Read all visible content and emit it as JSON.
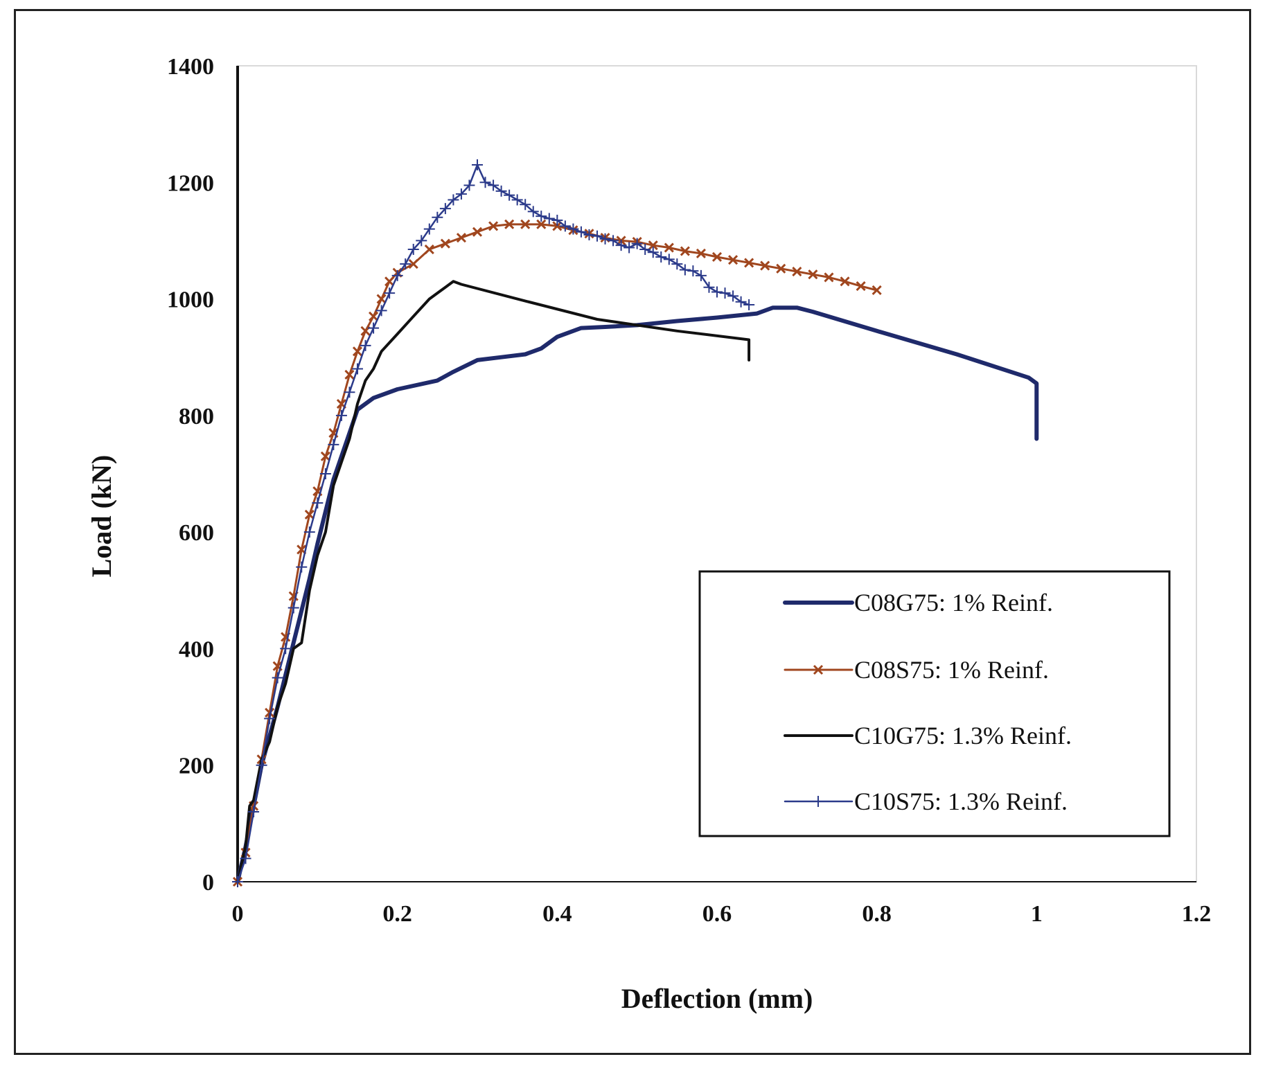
{
  "chart_data": {
    "type": "line",
    "title": "",
    "xlabel": "Deflection (mm)",
    "ylabel": "Load (kN)",
    "xlim": [
      0,
      1.2
    ],
    "ylim": [
      0,
      1400
    ],
    "xticks": [
      0,
      0.2,
      0.4,
      0.6,
      0.8,
      1,
      1.2
    ],
    "xtick_labels": [
      "0",
      "0.2",
      "0.4",
      "0.6",
      "0.8",
      "1",
      "1.2"
    ],
    "yticks": [
      0,
      200,
      400,
      600,
      800,
      1000,
      1200,
      1400
    ],
    "ytick_labels": [
      "0",
      "200",
      "400",
      "600",
      "800",
      "1000",
      "1200",
      "1400"
    ],
    "legend_position": "bottom-right",
    "series": [
      {
        "name": "C08G75: 1% Reinf.",
        "color": "#1f2a6b",
        "width": 6,
        "marker": "none",
        "x": [
          0,
          0.01,
          0.02,
          0.03,
          0.05,
          0.07,
          0.09,
          0.1,
          0.12,
          0.14,
          0.15,
          0.17,
          0.2,
          0.25,
          0.27,
          0.3,
          0.33,
          0.36,
          0.38,
          0.4,
          0.43,
          0.46,
          0.5,
          0.55,
          0.6,
          0.65,
          0.67,
          0.7,
          0.72,
          0.8,
          0.9,
          0.99,
          1.0,
          1.0
        ],
        "y": [
          0,
          60,
          130,
          200,
          300,
          410,
          520,
          580,
          690,
          770,
          810,
          830,
          845,
          860,
          875,
          895,
          900,
          905,
          915,
          935,
          950,
          952,
          955,
          962,
          968,
          975,
          985,
          985,
          978,
          945,
          905,
          865,
          855,
          760
        ]
      },
      {
        "name": "C08S75: 1% Reinf.",
        "color": "#a0461e",
        "width": 3,
        "marker": "x",
        "x": [
          0,
          0.01,
          0.02,
          0.03,
          0.04,
          0.05,
          0.06,
          0.07,
          0.08,
          0.09,
          0.1,
          0.11,
          0.12,
          0.13,
          0.14,
          0.15,
          0.16,
          0.17,
          0.18,
          0.19,
          0.2,
          0.22,
          0.24,
          0.26,
          0.28,
          0.3,
          0.32,
          0.34,
          0.36,
          0.38,
          0.4,
          0.42,
          0.44,
          0.46,
          0.48,
          0.5,
          0.52,
          0.54,
          0.56,
          0.58,
          0.6,
          0.62,
          0.64,
          0.66,
          0.68,
          0.7,
          0.72,
          0.74,
          0.76,
          0.78,
          0.8
        ],
        "y": [
          0,
          50,
          130,
          210,
          290,
          370,
          420,
          490,
          570,
          630,
          670,
          730,
          770,
          820,
          870,
          910,
          945,
          970,
          1000,
          1030,
          1045,
          1060,
          1085,
          1095,
          1105,
          1115,
          1125,
          1128,
          1128,
          1128,
          1125,
          1118,
          1112,
          1105,
          1100,
          1098,
          1092,
          1088,
          1082,
          1078,
          1072,
          1067,
          1062,
          1057,
          1052,
          1047,
          1042,
          1037,
          1030,
          1022,
          1015
        ]
      },
      {
        "name": "C10G75: 1.3% Reinf.",
        "color": "#111111",
        "width": 4,
        "marker": "none",
        "x": [
          0,
          0.01,
          0.015,
          0.02,
          0.03,
          0.04,
          0.05,
          0.06,
          0.07,
          0.08,
          0.09,
          0.1,
          0.11,
          0.12,
          0.13,
          0.14,
          0.15,
          0.16,
          0.17,
          0.18,
          0.2,
          0.22,
          0.24,
          0.26,
          0.27,
          0.28,
          0.35,
          0.45,
          0.55,
          0.64,
          0.64
        ],
        "y": [
          0,
          60,
          130,
          140,
          210,
          240,
          300,
          340,
          400,
          410,
          500,
          560,
          600,
          680,
          720,
          760,
          820,
          860,
          880,
          910,
          940,
          970,
          1000,
          1020,
          1030,
          1025,
          1000,
          965,
          945,
          930,
          895
        ]
      },
      {
        "name": "C10S75: 1.3% Reinf.",
        "color": "#2b3a8a",
        "width": 2.5,
        "marker": "plus",
        "x": [
          0,
          0.01,
          0.02,
          0.03,
          0.04,
          0.05,
          0.06,
          0.07,
          0.08,
          0.09,
          0.1,
          0.11,
          0.12,
          0.13,
          0.14,
          0.15,
          0.16,
          0.17,
          0.18,
          0.19,
          0.2,
          0.21,
          0.22,
          0.23,
          0.24,
          0.25,
          0.26,
          0.27,
          0.28,
          0.29,
          0.3,
          0.31,
          0.32,
          0.33,
          0.34,
          0.35,
          0.36,
          0.37,
          0.38,
          0.39,
          0.4,
          0.41,
          0.42,
          0.43,
          0.44,
          0.45,
          0.46,
          0.47,
          0.48,
          0.49,
          0.5,
          0.51,
          0.52,
          0.53,
          0.54,
          0.55,
          0.56,
          0.57,
          0.58,
          0.59,
          0.6,
          0.61,
          0.62,
          0.63,
          0.64
        ],
        "y": [
          0,
          40,
          120,
          200,
          280,
          350,
          400,
          470,
          540,
          600,
          650,
          700,
          750,
          800,
          840,
          880,
          920,
          950,
          980,
          1010,
          1040,
          1060,
          1085,
          1100,
          1120,
          1140,
          1155,
          1170,
          1180,
          1195,
          1230,
          1200,
          1195,
          1185,
          1178,
          1170,
          1162,
          1150,
          1142,
          1138,
          1135,
          1125,
          1120,
          1115,
          1110,
          1108,
          1103,
          1100,
          1092,
          1088,
          1095,
          1085,
          1080,
          1072,
          1068,
          1060,
          1050,
          1048,
          1040,
          1020,
          1012,
          1010,
          1005,
          995,
          990
        ]
      }
    ]
  }
}
